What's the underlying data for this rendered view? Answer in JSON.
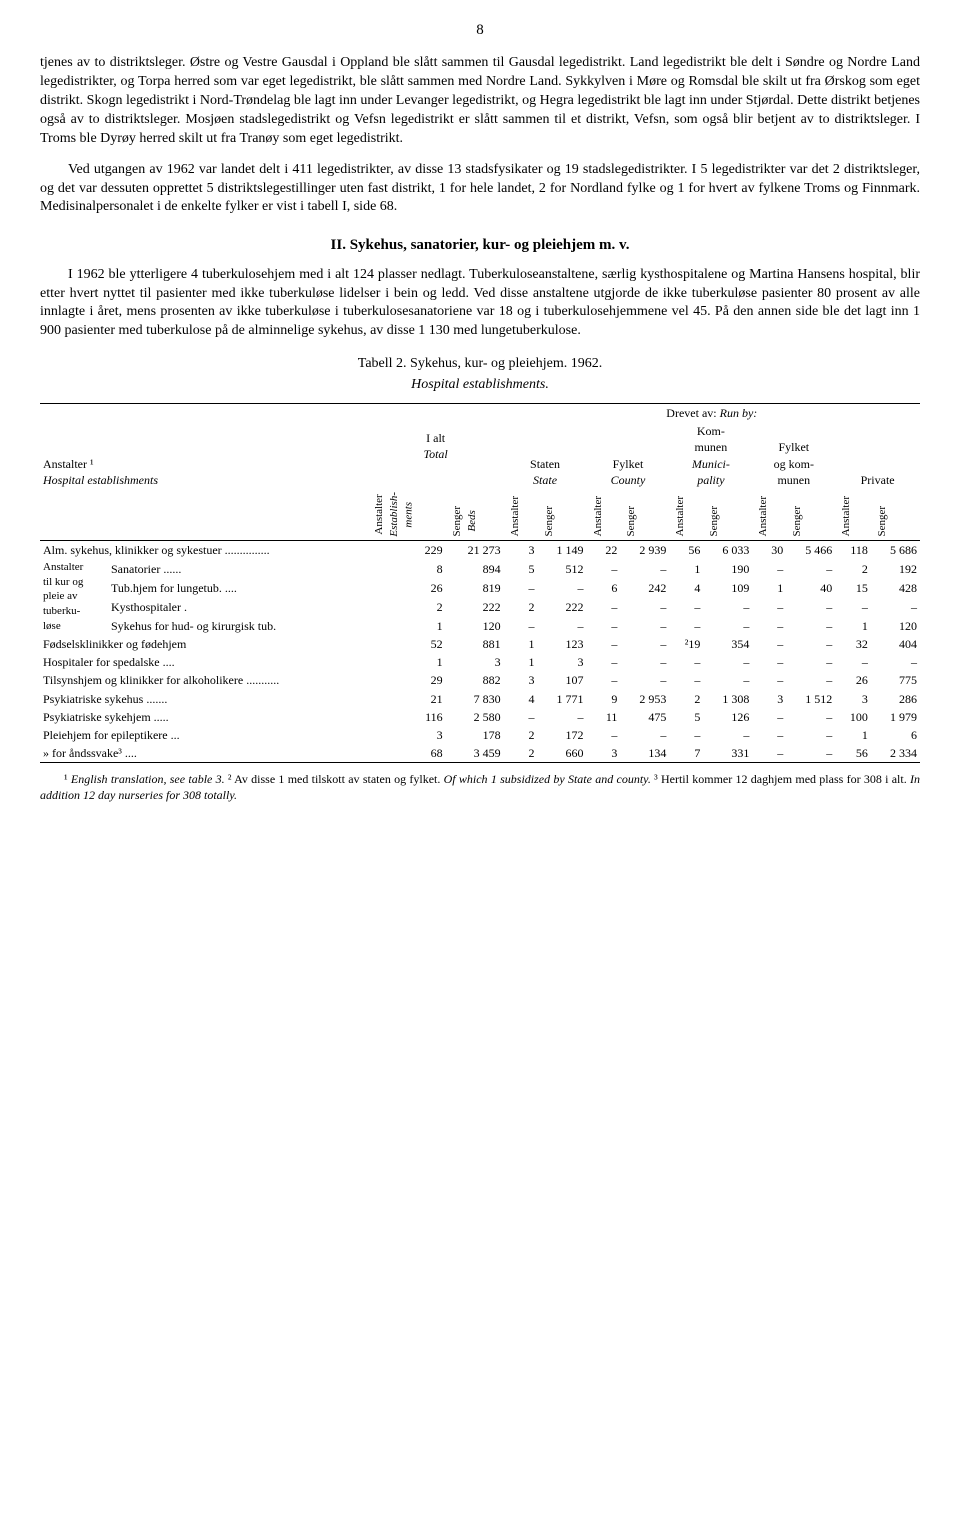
{
  "page_number": "8",
  "paragraph1": "tjenes av to distriktsleger. Østre og Vestre Gausdal i Oppland ble slått sammen til Gausdal legedistrikt. Land legedistrikt ble delt i Søndre og Nordre Land legedistrikter, og Torpa herred som var eget legedistrikt, ble slått sammen med Nordre Land. Sykkylven i Møre og Romsdal ble skilt ut fra Ørskog som eget distrikt. Skogn legedistrikt i Nord-Trøndelag ble lagt inn under Levanger legedistrikt, og Hegra legedistrikt ble lagt inn under Stjørdal. Dette distrikt betjenes også av to distriktsleger. Mosjøen stadslegedistrikt og Vefsn legedistrikt er slått sammen til et distrikt, Vefsn, som også blir betjent av to distriktsleger. I Troms ble Dyrøy herred skilt ut fra Tranøy som eget legedistrikt.",
  "paragraph2": "Ved utgangen av 1962 var landet delt i 411 legedistrikter, av disse 13 stadsfysikater og 19 stadslegedistrikter. I 5 legedistrikter var det 2 distriktsleger, og det var dessuten opprettet 5 distriktslegestillinger uten fast distrikt, 1 for hele landet, 2 for Nordland fylke og 1 for hvert av fylkene Troms og Finnmark. Medisinalpersonalet i de enkelte fylker er vist i tabell I, side 68.",
  "section_heading": "II. Sykehus, sanatorier, kur- og pleiehjem m. v.",
  "paragraph3": "I 1962 ble ytterligere 4 tuberkulosehjem med i alt 124 plasser nedlagt. Tuberkuloseanstaltene, særlig kysthospitalene og Martina Hansens hospital, blir etter hvert nyttet til pasienter med ikke tuberkuløse lidelser i bein og ledd. Ved disse anstaltene utgjorde de ikke tuberkuløse pasienter 80 prosent av alle innlagte i året, mens prosenten av ikke tuberkuløse i tuberkulosesanatoriene var 18 og i tuberkulosehjemmene vel 45. På den annen side ble det lagt inn 1 900 pasienter med tuberkulose på de alminnelige sykehus, av disse 1 130 med lungetuberkulose.",
  "table": {
    "caption_line1": "Tabell 2.  Sykehus, kur- og pleiehjem.  1962.",
    "caption_line2": "Hospital establishments.",
    "col_labels": {
      "anstalter": "Anstalter ¹",
      "anstalter_eng": "Hospital establishments",
      "total": "I alt",
      "total_eng": "Total",
      "run_by": "Drevet av:",
      "run_by_eng": "Run by:",
      "staten": "Staten",
      "staten_eng": "State",
      "fylket": "Fylket",
      "fylket_eng": "County",
      "kommunen": "Kom-\nmunen",
      "kommunen_eng": "Munici-\npality",
      "fylket_kom": "Fylket\nog kom-\nmunen",
      "private": "Private",
      "anst_vert": "Anstalter",
      "anst_vert_eng": "Establish-\nments",
      "senger": "Senger",
      "senger_eng": "Beds"
    },
    "rows": [
      {
        "label": "Alm. sykehus, klinikker og sykestuer ...............",
        "v": [
          "229",
          "21 273",
          "3",
          "1 149",
          "22",
          "2 939",
          "56",
          "6 033",
          "30",
          "5 466",
          "118",
          "5 686"
        ]
      },
      {
        "label": "Sanatorier ......",
        "group": true,
        "v": [
          "8",
          "894",
          "5",
          "512",
          "–",
          "–",
          "1",
          "190",
          "–",
          "–",
          "2",
          "192"
        ]
      },
      {
        "label": "Tub.hjem for lungetub. ....",
        "group": true,
        "v": [
          "26",
          "819",
          "–",
          "–",
          "6",
          "242",
          "4",
          "109",
          "1",
          "40",
          "15",
          "428"
        ]
      },
      {
        "label": "Kysthospitaler .",
        "group": true,
        "v": [
          "2",
          "222",
          "2",
          "222",
          "–",
          "–",
          "–",
          "–",
          "–",
          "–",
          "–",
          "–"
        ]
      },
      {
        "label": "Sykehus for hud- og kirurgisk tub.",
        "group": true,
        "v": [
          "1",
          "120",
          "–",
          "–",
          "–",
          "–",
          "–",
          "–",
          "–",
          "–",
          "1",
          "120"
        ]
      },
      {
        "label": "Fødselsklinikker og fødehjem",
        "v": [
          "52",
          "881",
          "1",
          "123",
          "–",
          "–",
          "²19",
          "354",
          "–",
          "–",
          "32",
          "404"
        ]
      },
      {
        "label": "Hospitaler for spedalske ....",
        "v": [
          "1",
          "3",
          "1",
          "3",
          "–",
          "–",
          "–",
          "–",
          "–",
          "–",
          "–",
          "–"
        ]
      },
      {
        "label": "Tilsynshjem og klinikker for alkoholikere ...........",
        "v": [
          "29",
          "882",
          "3",
          "107",
          "–",
          "–",
          "–",
          "–",
          "–",
          "–",
          "26",
          "775"
        ]
      },
      {
        "label": "Psykiatriske sykehus .......",
        "v": [
          "21",
          "7 830",
          "4",
          "1 771",
          "9",
          "2 953",
          "2",
          "1 308",
          "3",
          "1 512",
          "3",
          "286"
        ]
      },
      {
        "label": "Psykiatriske sykehjem .....",
        "v": [
          "116",
          "2 580",
          "–",
          "–",
          "11",
          "475",
          "5",
          "126",
          "–",
          "–",
          "100",
          "1 979"
        ]
      },
      {
        "label": "Pleiehjem for epileptikere ...",
        "v": [
          "3",
          "178",
          "2",
          "172",
          "–",
          "–",
          "–",
          "–",
          "–",
          "–",
          "1",
          "6"
        ]
      },
      {
        "label": "»       for åndssvake³ ....",
        "v": [
          "68",
          "3 459",
          "2",
          "660",
          "3",
          "134",
          "7",
          "331",
          "–",
          "–",
          "56",
          "2 334"
        ]
      }
    ],
    "group_prefix": "Anstalter til kur og pleie av tuberku-løse"
  },
  "footnote": "¹ English translation, see table 3.  ² Av disse 1 med tilskott av staten og fylket. Of which 1 subsidized by State and county.  ³ Hertil kommer 12 daghjem med plass for 308 i alt. In addition 12 day nurseries for 308 totally."
}
